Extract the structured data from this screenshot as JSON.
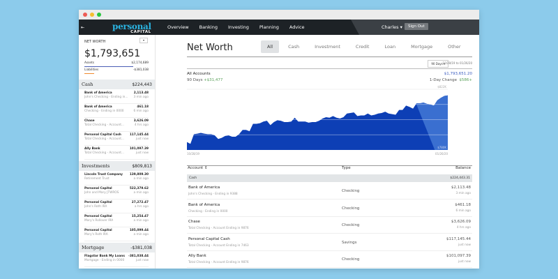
{
  "window": {
    "controls": {
      "close": "#ee5c54",
      "minimize": "#f5bd2f",
      "maximize": "#29c63f"
    }
  },
  "nav": {
    "logo_top": "personal",
    "logo_bottom": "CAPITAL",
    "links": [
      "Overview",
      "Banking",
      "Investing",
      "Planning",
      "Advice"
    ],
    "user": "Charles ▾",
    "sign_out": "Sign Out",
    "collapse_icon": "⇤"
  },
  "sidebar": {
    "net_worth_label": "NET WORTH",
    "menu_icon": "▾",
    "net_worth": "$1,793,651",
    "assets_label": "Assets",
    "assets": "$2,174,689",
    "liabilities_label": "Liabilities",
    "liabilities": "-$381,038",
    "sections": [
      {
        "name": "Cash",
        "total": "$224,443",
        "accounts": [
          {
            "name": "Bank of America",
            "desc": "John's Checking - Ending in...",
            "balance": "2,113.48",
            "time": "3 min ago"
          },
          {
            "name": "Bank of America",
            "desc": "Checking - Ending in 0000",
            "balance": "461.18",
            "time": "6 min ago"
          },
          {
            "name": "Chase",
            "desc": "Total Checking - Account...",
            "balance": "3,626.09",
            "time": "4 hrs ago"
          },
          {
            "name": "Personal Capital Cash",
            "desc": "Total Checking - Account...",
            "balance": "117,145.44",
            "time": "just now"
          },
          {
            "name": "Ally Bank",
            "desc": "Total Checking - Account...",
            "balance": "101,097.39",
            "time": "just now"
          }
        ]
      },
      {
        "name": "Investments",
        "total": "$809,813",
        "accounts": [
          {
            "name": "Lincoln Trust Company",
            "desc": "Retirement Trust",
            "balance": "139,809.30",
            "time": "a min ago"
          },
          {
            "name": "Personal Capital",
            "desc": "John and Mary JTWROS",
            "balance": "522,379.62",
            "time": "a min ago"
          },
          {
            "name": "Personal Capital",
            "desc": "John's Roth IRA",
            "balance": "27,272.47",
            "time": "a hrs ago"
          },
          {
            "name": "Personal Capital",
            "desc": "Mary's Rollover IRA",
            "balance": "15,254.47",
            "time": "a min ago"
          },
          {
            "name": "Personal Capital",
            "desc": "Mary's Roth IRA",
            "balance": "105,099.44",
            "time": "a min ago"
          }
        ]
      },
      {
        "name": "Mortgage",
        "total": "-$381,038",
        "accounts": [
          {
            "name": "Flagstar Bank My Loans",
            "desc": "Mortgage - Ending in 0000",
            "balance": "-381,038.44",
            "time": "just now"
          }
        ]
      }
    ]
  },
  "main": {
    "title": "Net Worth",
    "tabs": [
      "All",
      "Cash",
      "Investment",
      "Credit",
      "Loan",
      "Mortgage",
      "Other"
    ],
    "active_tab": "All",
    "range": "90 Days ▾",
    "date_range": "10/28/19 to 01/26/20",
    "all_accounts": "All Accounts",
    "period_label": "90 Days",
    "period_change": "+$31,477",
    "total": "$1,793,651.20",
    "day_change_label": "1-Day Change",
    "day_change": "$586+",
    "table": {
      "headers": [
        "Account ⇕",
        "Type",
        "Balance"
      ],
      "group": "Cash",
      "group_total": "$224,443.31",
      "rows": [
        {
          "name": "Bank of America",
          "desc": "John's Checking - Ending in 9388",
          "type": "Checking",
          "balance": "$2,113.48",
          "time": "3 min ago"
        },
        {
          "name": "Bank of America",
          "desc": "Checking - Ending in 0000",
          "type": "Checking",
          "balance": "$461.18",
          "time": "6 min ago"
        },
        {
          "name": "Chase",
          "desc": "Total Checking - Account Ending in 9876",
          "type": "Checking",
          "balance": "$3,626.09",
          "time": "4 hrs ago"
        },
        {
          "name": "Personal Capital Cash",
          "desc": "Total Checking - Account Ending in 7463",
          "type": "Savings",
          "balance": "$117,145.44",
          "time": "just now"
        },
        {
          "name": "Ally Bank",
          "desc": "Total Checking - Account Ending in 9876",
          "type": "Checking",
          "balance": "$101,097.39",
          "time": "just now"
        }
      ]
    }
  },
  "chart_data": {
    "type": "area",
    "x_start": "10/28/19",
    "x_end": "01/26/20",
    "y_top_label": "$822K",
    "y_bottom_label": "$780K",
    "ylim": [
      780,
      822
    ],
    "grid": true,
    "fill_color": "#0d3fb5",
    "highlight_color": "#3a6fd0",
    "values": [
      785.5,
      784.2,
      790.9,
      791.3,
      791.8,
      791.3,
      790.9,
      790.9,
      790.1,
      787.6,
      788.4,
      789.7,
      790.1,
      789.2,
      789.2,
      790.9,
      793.9,
      793.9,
      793,
      798.1,
      798.1,
      798.5,
      799.7,
      800.2,
      797.2,
      799.3,
      800.6,
      800.2,
      799.3,
      799.3,
      799.7,
      802.3,
      799.7,
      799.7,
      799.7,
      798.9,
      799.3,
      799.3,
      800.2,
      801.8,
      802.7,
      802.3,
      803.5,
      802.3,
      801.8,
      802.7,
      805.2,
      805.6,
      806,
      803.5,
      803.9,
      803.9,
      805.2,
      803.9,
      804.4,
      805.2,
      805.6,
      806.5,
      805.2,
      804.8,
      804.4,
      807.7,
      807.7,
      810.7,
      809.8,
      808.6,
      812.3,
      812.3,
      812.8,
      811.9,
      811.5,
      810.7,
      814.4,
      816.1,
      817.4,
      817.8
    ]
  }
}
